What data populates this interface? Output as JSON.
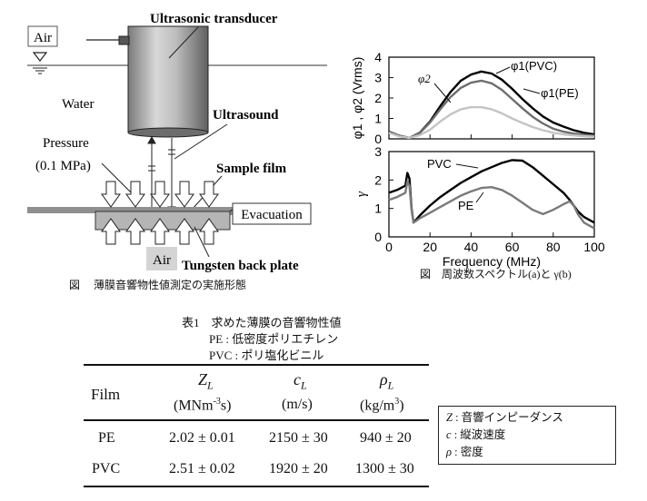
{
  "diagram": {
    "labels": {
      "air_top": "Air",
      "transducer": "Ultrasonic transducer",
      "water": "Water",
      "ultrasound": "Ultrasound",
      "pressure_1": "Pressure",
      "pressure_2": "(0.1 MPa)",
      "sample_film": "Sample film",
      "evacuation": "Evacuation",
      "air_bottom": "Air",
      "back_plate": "Tungsten back plate"
    },
    "caption": "図　 薄膜音響物性値測定の実施形態"
  },
  "chart_data": [
    {
      "type": "line",
      "title": "",
      "ylabel": "φ1 , φ2 (Vrms)",
      "xlim": [
        0,
        100
      ],
      "ylim": [
        0,
        4
      ],
      "yticks": [
        0,
        1,
        2,
        3,
        4
      ],
      "series": [
        {
          "name": "φ1(PVC)",
          "color": "#000000",
          "x": [
            0,
            5,
            10,
            15,
            20,
            25,
            30,
            35,
            40,
            45,
            50,
            55,
            60,
            65,
            70,
            75,
            80,
            85,
            90,
            95,
            100
          ],
          "y": [
            0.35,
            0.15,
            0.05,
            0.3,
            0.85,
            1.6,
            2.3,
            2.85,
            3.15,
            3.3,
            3.2,
            2.9,
            2.45,
            1.95,
            1.5,
            1.1,
            0.8,
            0.6,
            0.42,
            0.3,
            0.22
          ]
        },
        {
          "name": "φ1(PE)",
          "color": "#6e6e6e",
          "x": [
            0,
            5,
            10,
            15,
            20,
            25,
            30,
            35,
            40,
            45,
            50,
            55,
            60,
            65,
            70,
            75,
            80,
            85,
            90,
            95,
            100
          ],
          "y": [
            0.32,
            0.13,
            0.05,
            0.28,
            0.8,
            1.45,
            2.05,
            2.5,
            2.75,
            2.85,
            2.72,
            2.4,
            1.95,
            1.5,
            1.08,
            0.75,
            0.5,
            0.35,
            0.26,
            0.2,
            0.16
          ]
        },
        {
          "name": "φ2",
          "color": "#c4c4c4",
          "x": [
            0,
            5,
            10,
            15,
            20,
            25,
            30,
            35,
            40,
            45,
            50,
            55,
            60,
            65,
            70,
            75,
            80,
            85,
            90,
            95,
            100
          ],
          "y": [
            0.3,
            0.12,
            0.05,
            0.18,
            0.45,
            0.85,
            1.2,
            1.45,
            1.55,
            1.55,
            1.45,
            1.25,
            1.0,
            0.78,
            0.58,
            0.42,
            0.3,
            0.22,
            0.17,
            0.13,
            0.1
          ]
        }
      ],
      "labels": {
        "phi1_pvc": "φ1(PVC)",
        "phi1_pe": "φ1(PE)",
        "phi2": "φ2"
      }
    },
    {
      "type": "line",
      "title": "",
      "ylabel": "γ",
      "xlabel": "Frequency (MHz)",
      "xlim": [
        0,
        100
      ],
      "ylim": [
        0,
        3
      ],
      "yticks": [
        0,
        1,
        2,
        3
      ],
      "xticks": [
        0,
        20,
        40,
        60,
        80,
        100
      ],
      "series": [
        {
          "name": "PVC",
          "color": "#000000",
          "x": [
            0,
            4,
            8,
            9,
            10,
            11,
            12,
            15,
            20,
            25,
            30,
            35,
            40,
            45,
            50,
            55,
            60,
            65,
            70,
            75,
            80,
            85,
            88,
            90,
            92,
            95,
            100
          ],
          "y": [
            1.55,
            1.65,
            1.8,
            2.25,
            2.05,
            1.0,
            0.5,
            0.75,
            1.1,
            1.4,
            1.65,
            1.9,
            2.1,
            2.3,
            2.45,
            2.6,
            2.7,
            2.68,
            2.45,
            2.15,
            1.85,
            1.55,
            1.3,
            1.1,
            0.9,
            0.7,
            0.5
          ]
        },
        {
          "name": "PE",
          "color": "#7a7a7a",
          "x": [
            0,
            4,
            8,
            9,
            10,
            11,
            12,
            15,
            20,
            25,
            30,
            35,
            40,
            45,
            50,
            55,
            60,
            65,
            70,
            75,
            80,
            85,
            88,
            90,
            92,
            95,
            100
          ],
          "y": [
            1.3,
            1.4,
            1.55,
            1.95,
            1.8,
            0.95,
            0.5,
            0.65,
            0.85,
            1.05,
            1.25,
            1.45,
            1.6,
            1.72,
            1.75,
            1.65,
            1.45,
            1.2,
            0.95,
            0.8,
            0.95,
            1.15,
            1.25,
            1.1,
            0.8,
            0.5,
            0.3
          ]
        }
      ],
      "labels": {
        "pvc": "PVC",
        "pe": "PE"
      }
    }
  ],
  "chart_caption": "図　周波数スペクトル(a)と γ(b)",
  "table": {
    "title": "表1　求めた薄膜の音響物性値",
    "notes": [
      "PE : 低密度ポリエチレン",
      "PVC : ポリ塩化ビニル"
    ],
    "header": {
      "film": "Film",
      "z_symbol": "Z",
      "z_sub": "L",
      "z_unit_pre": "(MNm",
      "z_unit_sup": "-3",
      "z_unit_post": "s)",
      "c_symbol": "c",
      "c_sub": "L",
      "c_unit": "(m/s)",
      "rho_symbol": "ρ",
      "rho_sub": "L",
      "rho_unit_pre": "(kg/m",
      "rho_unit_sup": "3",
      "rho_unit_post": ")"
    },
    "rows": [
      {
        "film": "PE",
        "z": "2.02 ± 0.01",
        "c": "2150 ± 30",
        "rho": "940 ± 20"
      },
      {
        "film": "PVC",
        "z": "2.51 ± 0.02",
        "c": "1920 ± 20",
        "rho": "1300 ± 30"
      }
    ]
  },
  "legend": {
    "z_sym": "Z",
    "z_text": " : 音響インピーダンス",
    "c_sym": "c",
    "c_text": " : 縦波速度",
    "rho_sym": "ρ",
    "rho_text": " : 密度"
  }
}
